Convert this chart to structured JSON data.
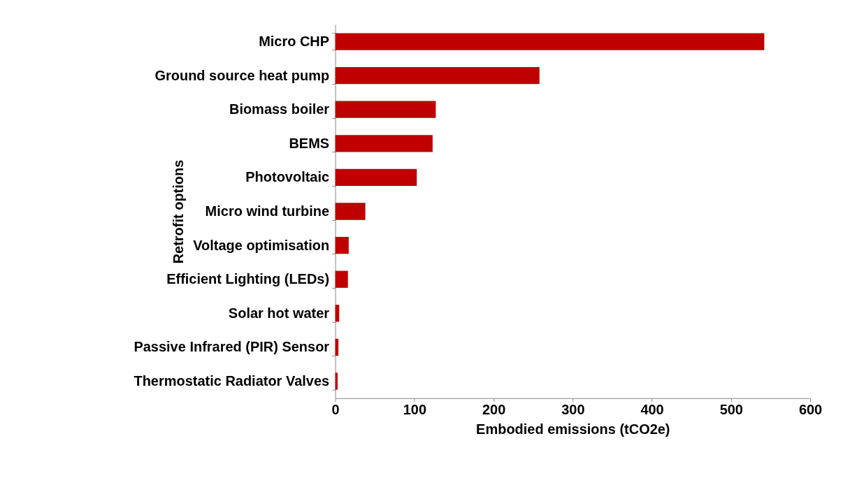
{
  "chart_data": {
    "type": "bar",
    "orientation": "horizontal",
    "xlabel": "Embodied emissions (tCO2e)",
    "ylabel": "Retrofit options",
    "categories": [
      "Micro CHP",
      "Ground source heat pump",
      "Biomass boiler",
      "BEMS",
      "Photovoltaic",
      "Micro wind turbine",
      "Voltage optimisation",
      "Efficient Lighting (LEDs)",
      "Solar hot water",
      "Passive Infrared (PIR) Sensor",
      "Thermostatic Radiator Valves"
    ],
    "values": [
      542,
      258,
      127,
      123,
      103,
      38,
      17,
      16,
      5,
      4,
      3
    ],
    "color": "#c00000",
    "xlim": [
      0,
      600
    ],
    "xticks": [
      0,
      100,
      200,
      300,
      400,
      500,
      600
    ],
    "grid": false
  }
}
